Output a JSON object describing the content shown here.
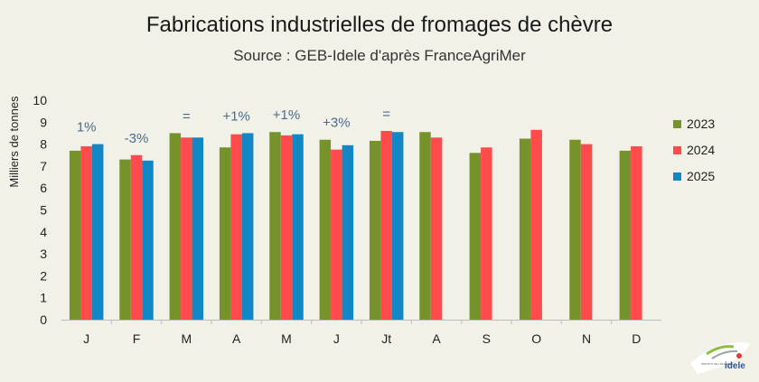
{
  "chart_data": {
    "type": "bar",
    "title": "Fabrications industrielles de fromages de chèvre",
    "subtitle": "Source : GEB-Idele d'après FranceAgriMer",
    "ylabel": "Milliers de tonnes",
    "xlabel": "",
    "ylim": [
      0,
      10
    ],
    "yticks": [
      0,
      1,
      2,
      3,
      4,
      5,
      6,
      7,
      8,
      9,
      10
    ],
    "grid": false,
    "legend": "right",
    "categories": [
      "J",
      "F",
      "M",
      "A",
      "M",
      "J",
      "Jt",
      "A",
      "S",
      "O",
      "N",
      "D"
    ],
    "series": [
      {
        "name": "2023",
        "color": "#76922a",
        "values": [
          7.7,
          7.3,
          8.5,
          7.85,
          8.55,
          8.2,
          8.15,
          8.55,
          7.6,
          8.25,
          8.2,
          7.7
        ]
      },
      {
        "name": "2024",
        "color": "#ff4b4b",
        "values": [
          7.9,
          7.5,
          8.3,
          8.45,
          8.4,
          7.75,
          8.6,
          8.3,
          7.85,
          8.65,
          8.0,
          7.9
        ]
      },
      {
        "name": "2025",
        "color": "#1187c6",
        "values": [
          8.0,
          7.25,
          8.3,
          8.5,
          8.45,
          7.95,
          8.55,
          null,
          null,
          null,
          null,
          null
        ]
      }
    ],
    "annotations": [
      "1%",
      "-3%",
      "=",
      "+1%",
      "+1%",
      "+3%",
      "=",
      "",
      "",
      "",
      "",
      ""
    ]
  },
  "logo": {
    "icon": "idele-logo",
    "text": "idele",
    "small_text": "INSTITUT DE L'ÉLEVAGE"
  }
}
